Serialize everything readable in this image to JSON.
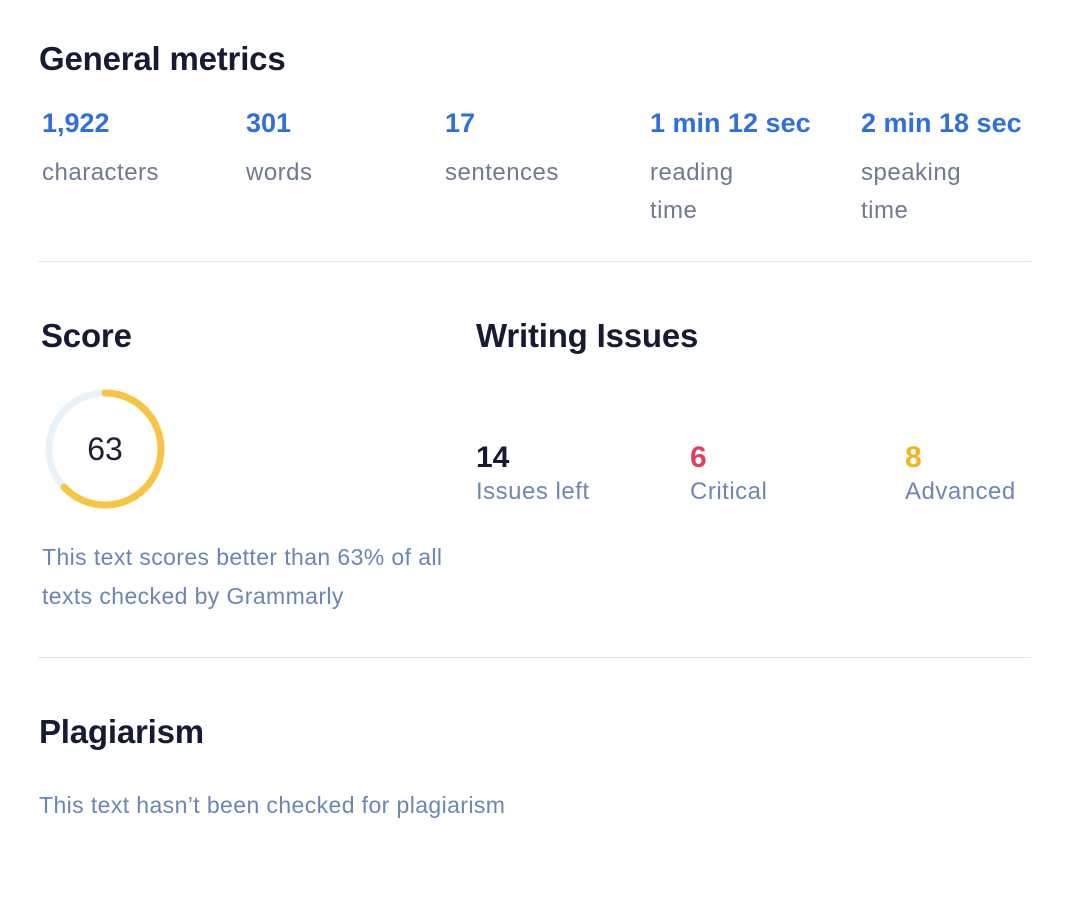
{
  "general": {
    "title": "General metrics",
    "metrics": [
      {
        "value": "1,922",
        "label": "characters"
      },
      {
        "value": "301",
        "label": "words"
      },
      {
        "value": "17",
        "label": "sentences"
      },
      {
        "value": "1 min 12 sec",
        "label": "reading\ntime"
      },
      {
        "value": "2 min 18 sec",
        "label": "speaking\ntime"
      }
    ]
  },
  "score": {
    "title": "Score",
    "value": "63",
    "percent": 63,
    "description": "This text scores better than 63% of all texts checked by Grammarly",
    "colors": {
      "ring": "#f7c444",
      "track": "#e8f2fb"
    }
  },
  "issues": {
    "title": "Writing Issues",
    "items": [
      {
        "value": "14",
        "label": "Issues left",
        "color": "#161b33"
      },
      {
        "value": "6",
        "label": "Critical",
        "color": "#e0405f"
      },
      {
        "value": "8",
        "label": "Advanced",
        "color": "#f2b520"
      }
    ]
  },
  "plagiarism": {
    "title": "Plagiarism",
    "description": "This text hasn’t been checked for plagiarism"
  }
}
